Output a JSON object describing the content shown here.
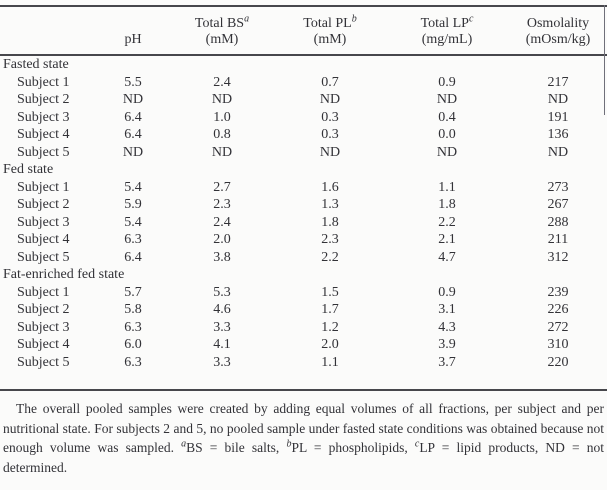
{
  "page": {
    "background_color": "#fbfbfa",
    "text_color": "#323237",
    "rule_color": "#47474c"
  },
  "table": {
    "columns": [
      {
        "line1": "",
        "sup": "",
        "line2": ""
      },
      {
        "line1": "",
        "sup": "",
        "line2": "pH"
      },
      {
        "line1": "Total BS",
        "sup": "a",
        "line2": "(mM)"
      },
      {
        "line1": "Total PL",
        "sup": "b",
        "line2": "(mM)"
      },
      {
        "line1": "Total LP",
        "sup": "c",
        "line2": "(mg/mL)"
      },
      {
        "line1": "Osmolality",
        "sup": "",
        "line2": "(mOsm/kg)"
      }
    ],
    "groups": [
      {
        "label": "Fasted state",
        "rows": [
          {
            "label": "Subject 1",
            "values": [
              "5.5",
              "2.4",
              "0.7",
              "0.9",
              "217"
            ]
          },
          {
            "label": "Subject 2",
            "values": [
              "ND",
              "ND",
              "ND",
              "ND",
              "ND"
            ]
          },
          {
            "label": "Subject 3",
            "values": [
              "6.4",
              "1.0",
              "0.3",
              "0.4",
              "191"
            ]
          },
          {
            "label": "Subject 4",
            "values": [
              "6.4",
              "0.8",
              "0.3",
              "0.0",
              "136"
            ]
          },
          {
            "label": "Subject 5",
            "values": [
              "ND",
              "ND",
              "ND",
              "ND",
              "ND"
            ]
          }
        ]
      },
      {
        "label": "Fed state",
        "rows": [
          {
            "label": "Subject 1",
            "values": [
              "5.4",
              "2.7",
              "1.6",
              "1.1",
              "273"
            ]
          },
          {
            "label": "Subject 2",
            "values": [
              "5.9",
              "2.3",
              "1.3",
              "1.8",
              "267"
            ]
          },
          {
            "label": "Subject 3",
            "values": [
              "5.4",
              "2.4",
              "1.8",
              "2.2",
              "288"
            ]
          },
          {
            "label": "Subject 4",
            "values": [
              "6.3",
              "2.0",
              "2.3",
              "2.1",
              "211"
            ]
          },
          {
            "label": "Subject 5",
            "values": [
              "6.4",
              "3.8",
              "2.2",
              "4.7",
              "312"
            ]
          }
        ]
      },
      {
        "label": "Fat-enriched fed state",
        "rows": [
          {
            "label": "Subject 1",
            "values": [
              "5.7",
              "5.3",
              "1.5",
              "0.9",
              "239"
            ]
          },
          {
            "label": "Subject 2",
            "values": [
              "5.8",
              "4.6",
              "1.7",
              "3.1",
              "226"
            ]
          },
          {
            "label": "Subject 3",
            "values": [
              "6.3",
              "3.3",
              "1.2",
              "4.3",
              "272"
            ]
          },
          {
            "label": "Subject 4",
            "values": [
              "6.0",
              "4.1",
              "2.0",
              "3.9",
              "310"
            ]
          },
          {
            "label": "Subject 5",
            "values": [
              "6.3",
              "3.3",
              "1.1",
              "3.7",
              "220"
            ]
          }
        ]
      }
    ]
  },
  "footnote": {
    "segments": [
      {
        "type": "text",
        "text": "The overall pooled samples were created by adding equal volumes of all fractions, per subject and per nutritional state. For subjects 2 and 5, no pooled sample under fasted state conditions was obtained because not enough volume was sampled. "
      },
      {
        "type": "sup",
        "text": "a"
      },
      {
        "type": "text",
        "text": "BS = bile salts, "
      },
      {
        "type": "sup",
        "text": "b"
      },
      {
        "type": "text",
        "text": "PL = phospholipids, "
      },
      {
        "type": "sup",
        "text": "c"
      },
      {
        "type": "text",
        "text": "LP = lipid products, ND = not determined."
      }
    ]
  }
}
